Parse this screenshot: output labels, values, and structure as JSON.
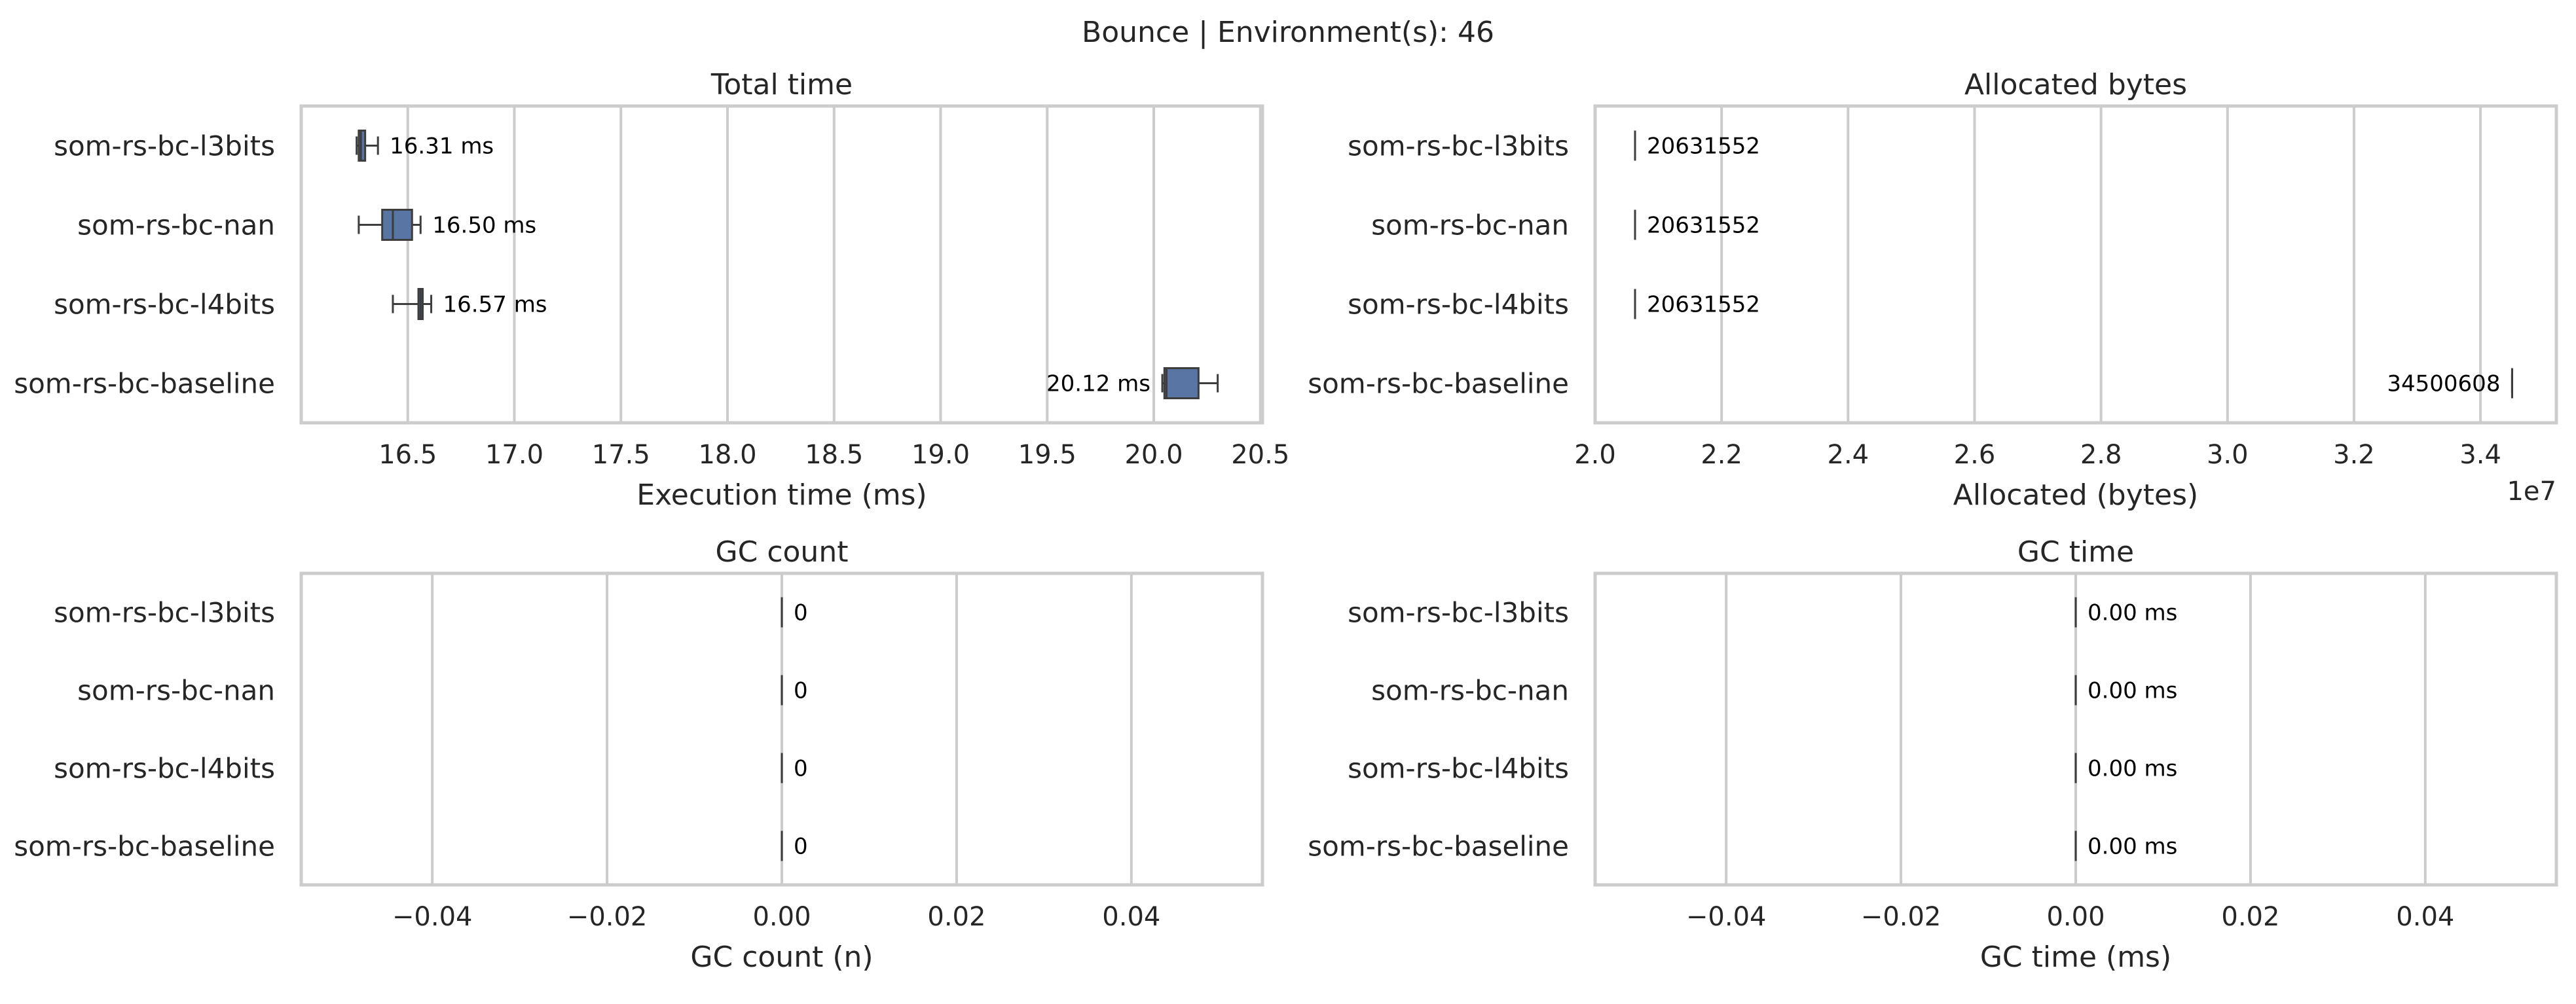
{
  "figure": {
    "suptitle": "Bounce | Environment(s): 46"
  },
  "chart_data": [
    {
      "type": "boxplot",
      "orientation": "horizontal",
      "title": "Total time",
      "xlabel": "Execution time (ms)",
      "categories": [
        "som-rs-bc-l3bits",
        "som-rs-bc-nan",
        "som-rs-bc-l4bits",
        "som-rs-bc-baseline"
      ],
      "xlim": [
        16.0,
        20.51
      ],
      "xticks": [
        16.5,
        17.0,
        17.5,
        18.0,
        18.5,
        19.0,
        19.5,
        20.0,
        20.5
      ],
      "xtick_labels": [
        "16.5",
        "17.0",
        "17.5",
        "18.0",
        "18.5",
        "19.0",
        "19.5",
        "20.0",
        "20.5"
      ],
      "offset_label": "",
      "boxes": [
        {
          "whislo": 16.26,
          "q1": 16.27,
          "med": 16.28,
          "q3": 16.3,
          "whishi": 16.36,
          "mean": 16.31,
          "label": "16.31 ms",
          "label_side": "right"
        },
        {
          "whislo": 16.27,
          "q1": 16.38,
          "med": 16.43,
          "q3": 16.52,
          "whishi": 16.56,
          "mean": 16.5,
          "label": "16.50 ms",
          "label_side": "right"
        },
        {
          "whislo": 16.43,
          "q1": 16.55,
          "med": 16.56,
          "q3": 16.57,
          "whishi": 16.61,
          "mean": 16.57,
          "label": "16.57 ms",
          "label_side": "right"
        },
        {
          "whislo": 20.04,
          "q1": 20.05,
          "med": 20.06,
          "q3": 20.21,
          "whishi": 20.3,
          "mean": 20.12,
          "label": "20.12 ms",
          "label_side": "left"
        }
      ],
      "grid": true
    },
    {
      "type": "boxplot",
      "orientation": "horizontal",
      "title": "Allocated bytes",
      "xlabel": "Allocated (bytes)",
      "categories": [
        "som-rs-bc-l3bits",
        "som-rs-bc-nan",
        "som-rs-bc-l4bits",
        "som-rs-bc-baseline"
      ],
      "xlim": [
        20000000,
        35200000
      ],
      "xticks": [
        20000000,
        22000000,
        24000000,
        26000000,
        28000000,
        30000000,
        32000000,
        34000000
      ],
      "xtick_labels": [
        "2.0",
        "2.2",
        "2.4",
        "2.6",
        "2.8",
        "3.0",
        "3.2",
        "3.4"
      ],
      "offset_label": "1e7",
      "boxes": [
        {
          "whislo": 20631552,
          "q1": 20631552,
          "med": 20631552,
          "q3": 20631552,
          "whishi": 20631552,
          "mean": 20631552,
          "label": "20631552",
          "label_side": "right"
        },
        {
          "whislo": 20631552,
          "q1": 20631552,
          "med": 20631552,
          "q3": 20631552,
          "whishi": 20631552,
          "mean": 20631552,
          "label": "20631552",
          "label_side": "right"
        },
        {
          "whislo": 20631552,
          "q1": 20631552,
          "med": 20631552,
          "q3": 20631552,
          "whishi": 20631552,
          "mean": 20631552,
          "label": "20631552",
          "label_side": "right"
        },
        {
          "whislo": 34500608,
          "q1": 34500608,
          "med": 34500608,
          "q3": 34500608,
          "whishi": 34500608,
          "mean": 34500608,
          "label": "34500608",
          "label_side": "left"
        }
      ],
      "grid": true
    },
    {
      "type": "boxplot",
      "orientation": "horizontal",
      "title": "GC count",
      "xlabel": "GC count (n)",
      "categories": [
        "som-rs-bc-l3bits",
        "som-rs-bc-nan",
        "som-rs-bc-l4bits",
        "som-rs-bc-baseline"
      ],
      "xlim": [
        -0.055,
        0.055
      ],
      "xticks": [
        -0.04,
        -0.02,
        0.0,
        0.02,
        0.04
      ],
      "xtick_labels": [
        "−0.04",
        "−0.02",
        "0.00",
        "0.02",
        "0.04"
      ],
      "offset_label": "",
      "boxes": [
        {
          "whislo": 0,
          "q1": 0,
          "med": 0,
          "q3": 0,
          "whishi": 0,
          "mean": 0,
          "label": "0",
          "label_side": "right"
        },
        {
          "whislo": 0,
          "q1": 0,
          "med": 0,
          "q3": 0,
          "whishi": 0,
          "mean": 0,
          "label": "0",
          "label_side": "right"
        },
        {
          "whislo": 0,
          "q1": 0,
          "med": 0,
          "q3": 0,
          "whishi": 0,
          "mean": 0,
          "label": "0",
          "label_side": "right"
        },
        {
          "whislo": 0,
          "q1": 0,
          "med": 0,
          "q3": 0,
          "whishi": 0,
          "mean": 0,
          "label": "0",
          "label_side": "right"
        }
      ],
      "grid": true
    },
    {
      "type": "boxplot",
      "orientation": "horizontal",
      "title": "GC time",
      "xlabel": "GC time (ms)",
      "categories": [
        "som-rs-bc-l3bits",
        "som-rs-bc-nan",
        "som-rs-bc-l4bits",
        "som-rs-bc-baseline"
      ],
      "xlim": [
        -0.055,
        0.055
      ],
      "xticks": [
        -0.04,
        -0.02,
        0.0,
        0.02,
        0.04
      ],
      "xtick_labels": [
        "−0.04",
        "−0.02",
        "0.00",
        "0.02",
        "0.04"
      ],
      "offset_label": "",
      "boxes": [
        {
          "whislo": 0,
          "q1": 0,
          "med": 0,
          "q3": 0,
          "whishi": 0,
          "mean": 0,
          "label": "0.00 ms",
          "label_side": "right"
        },
        {
          "whislo": 0,
          "q1": 0,
          "med": 0,
          "q3": 0,
          "whishi": 0,
          "mean": 0,
          "label": "0.00 ms",
          "label_side": "right"
        },
        {
          "whislo": 0,
          "q1": 0,
          "med": 0,
          "q3": 0,
          "whishi": 0,
          "mean": 0,
          "label": "0.00 ms",
          "label_side": "right"
        },
        {
          "whislo": 0,
          "q1": 0,
          "med": 0,
          "q3": 0,
          "whishi": 0,
          "mean": 0,
          "label": "0.00 ms",
          "label_side": "right"
        }
      ],
      "grid": true
    }
  ],
  "colors": {
    "box_fill": "#5975a4",
    "box_edge": "#3d3d3d",
    "grid": "#cccccc",
    "spine": "#cccccc",
    "text": "#262626"
  }
}
